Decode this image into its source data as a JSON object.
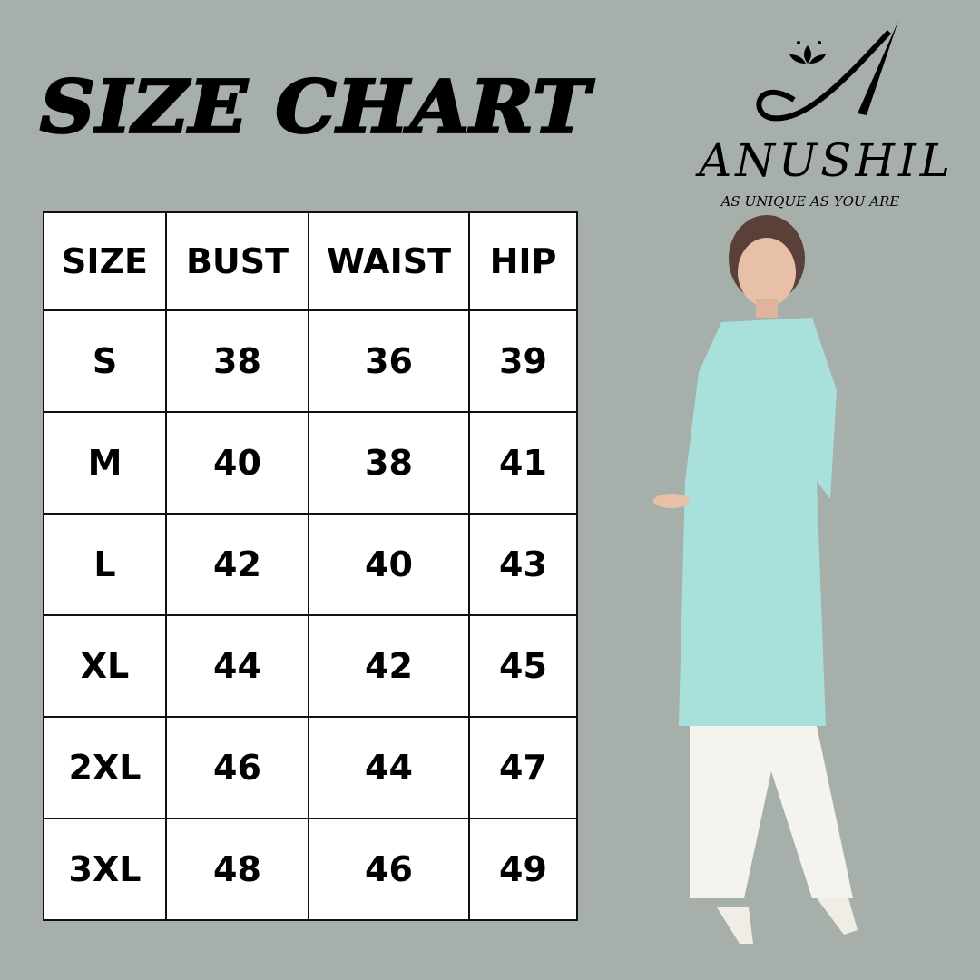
{
  "title": "SIZE CHART",
  "brand": {
    "name": "ANUSHIL",
    "tagline": "AS UNIQUE AS YOU ARE",
    "logo_letter": "A"
  },
  "table": {
    "headers": [
      "SIZE",
      "BUST",
      "WAIST",
      "HIP"
    ],
    "rows": [
      [
        "S",
        "38",
        "36",
        "39"
      ],
      [
        "M",
        "40",
        "38",
        "41"
      ],
      [
        "L",
        "42",
        "40",
        "43"
      ],
      [
        "XL",
        "44",
        "42",
        "45"
      ],
      [
        "2XL",
        "46",
        "44",
        "47"
      ],
      [
        "3XL",
        "48",
        "46",
        "49"
      ]
    ]
  },
  "colors": {
    "background": "#a6afaa",
    "kurta": "#a8e0dc",
    "palazzo": "#f4f3ee"
  }
}
